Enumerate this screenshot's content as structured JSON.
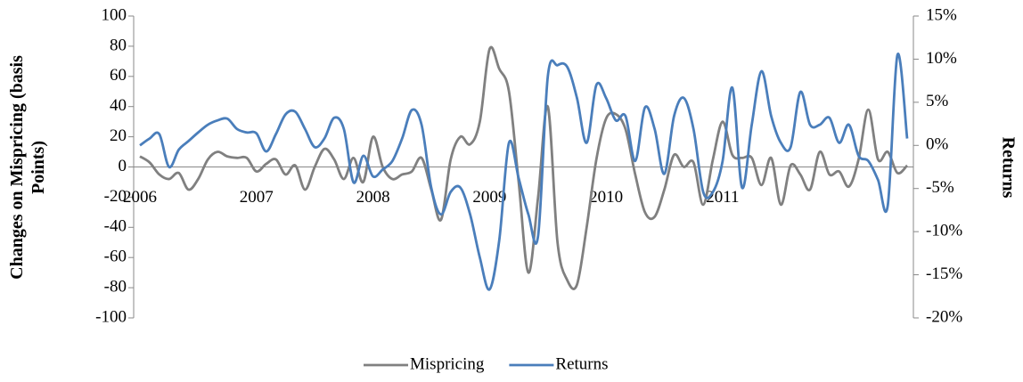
{
  "chart_data": {
    "type": "line",
    "y_label": [
      "Changes on Mispricing (basis",
      "Points)"
    ],
    "y2_label": "Returns",
    "categories": [
      "2006",
      null,
      null,
      null,
      null,
      null,
      null,
      null,
      null,
      null,
      null,
      null,
      "2007",
      null,
      null,
      null,
      null,
      null,
      null,
      null,
      null,
      null,
      null,
      null,
      "2008",
      null,
      null,
      null,
      null,
      null,
      null,
      null,
      null,
      null,
      null,
      null,
      "2009",
      null,
      null,
      null,
      null,
      null,
      null,
      null,
      null,
      null,
      null,
      null,
      "2010",
      null,
      null,
      null,
      null,
      null,
      null,
      null,
      null,
      null,
      null,
      null,
      "2011",
      null,
      null,
      null,
      null,
      null,
      null,
      null,
      null,
      null,
      null,
      null,
      null,
      null,
      null,
      null,
      null,
      null,
      null,
      null
    ],
    "series": [
      {
        "name": "Mispricing",
        "color": "#808080",
        "axis": "y",
        "values": [
          7,
          3,
          -5,
          -8,
          -4,
          -15,
          -8,
          5,
          10,
          7,
          6,
          6,
          -3,
          2,
          5,
          -5,
          1,
          -15,
          0,
          12,
          5,
          -8,
          6,
          -10,
          20,
          0,
          -8,
          -5,
          -3,
          6,
          -15,
          -35,
          5,
          20,
          15,
          30,
          78,
          65,
          50,
          -10,
          -70,
          -20,
          40,
          -50,
          -75,
          -78,
          -40,
          5,
          32,
          35,
          25,
          -5,
          -30,
          -33,
          -15,
          8,
          0,
          3,
          -25,
          5,
          30,
          8,
          6,
          6,
          -12,
          6,
          -25,
          1,
          -5,
          -15,
          10,
          -5,
          -3,
          -13,
          5,
          38,
          5,
          10,
          -4,
          1
        ]
      },
      {
        "name": "Returns",
        "color": "#4a7ebb",
        "axis": "y2",
        "values": [
          0,
          0.8,
          1.3,
          -2.5,
          -0.5,
          0.5,
          1.5,
          2.4,
          2.9,
          3.1,
          1.9,
          1.5,
          1.4,
          -0.7,
          1.3,
          3.6,
          3.9,
          1.9,
          -0.2,
          0.8,
          3.2,
          1.9,
          -4.3,
          -1.2,
          -3.6,
          -2.8,
          -1.8,
          0.8,
          4.1,
          2.4,
          -4.9,
          -8,
          -5.4,
          -4.9,
          -8,
          -13,
          -16.7,
          -11,
          0.3,
          -3.8,
          -8,
          -10.5,
          8,
          9.3,
          9.1,
          5.5,
          0.3,
          7,
          5.5,
          2.9,
          3.4,
          -1.8,
          4.4,
          1.9,
          -3.3,
          3.4,
          5.5,
          1.9,
          -5.4,
          -5.4,
          -1.8,
          6.7,
          -4.9,
          2.4,
          8.6,
          3.4,
          0.3,
          -0.2,
          6.2,
          2.4,
          2.4,
          3.2,
          0.3,
          2.4,
          -1.2,
          -1.8,
          -4,
          -7,
          10.5,
          0.8
        ]
      }
    ],
    "ylim": [
      -100,
      100
    ],
    "yticks": [
      -100,
      -80,
      -60,
      -40,
      -20,
      0,
      20,
      40,
      60,
      80,
      100
    ],
    "y2lim": [
      -20,
      15
    ],
    "y2ticks": [
      {
        "value": -20,
        "label": "-20%"
      },
      {
        "value": -15,
        "label": "-15%"
      },
      {
        "value": -10,
        "label": "-10%"
      },
      {
        "value": -5,
        "label": "-5%"
      },
      {
        "value": 0,
        "label": "0%"
      },
      {
        "value": 5,
        "label": "5%"
      },
      {
        "value": 10,
        "label": "10%"
      },
      {
        "value": 15,
        "label": "15%"
      }
    ],
    "legend": "bottom"
  }
}
